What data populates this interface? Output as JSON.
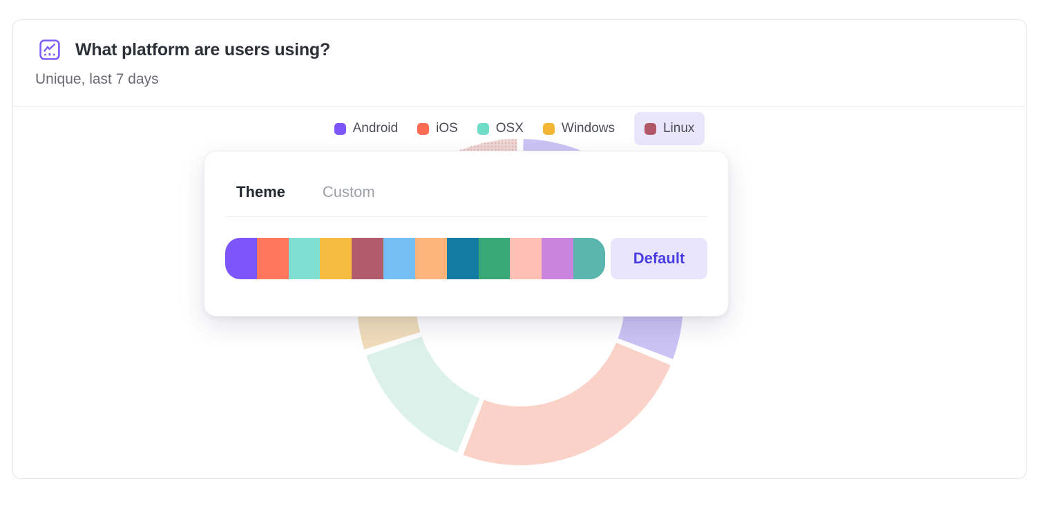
{
  "card": {
    "title": "What platform are users using?",
    "subtitle": "Unique, last 7 days",
    "icon_color": "#7d5cfa"
  },
  "legend": {
    "highlight_bg": "#e9e6fb",
    "items": [
      {
        "label": "Android",
        "color": "#7c55fb",
        "highlighted": false
      },
      {
        "label": "iOS",
        "color": "#fc6c52",
        "highlighted": false
      },
      {
        "label": "OSX",
        "color": "#70dcc8",
        "highlighted": false
      },
      {
        "label": "Windows",
        "color": "#f2b634",
        "highlighted": false
      },
      {
        "label": "Linux",
        "color": "#b25768",
        "highlighted": true
      }
    ]
  },
  "popover": {
    "tabs": [
      {
        "label": "Theme",
        "active": true
      },
      {
        "label": "Custom",
        "active": false
      }
    ],
    "palette": [
      "#7c55fb",
      "#fe765c",
      "#7fe0d1",
      "#f6bc40",
      "#b25b6b",
      "#74bef4",
      "#fdb47c",
      "#147ba3",
      "#39a877",
      "#fec0b4",
      "#c983dd",
      "#5ab5af"
    ],
    "default_button_label": "Default",
    "accent_text": "#4b3fe4",
    "accent_bg": "#e8e5fc"
  },
  "chart_data": {
    "type": "pie",
    "subtype": "donut",
    "title": "What platform are users using?",
    "categories": [
      "Android",
      "iOS",
      "OSX",
      "Windows",
      "Linux"
    ],
    "values": [
      31,
      25,
      14,
      8,
      22
    ],
    "unit": "percent (estimated from arc angles)",
    "colors": [
      "#7c55fb",
      "#fc6c52",
      "#70dcc8",
      "#f2b634",
      "#b25768"
    ],
    "faded_colors": [
      "#cbc3f3",
      "#fbd2c8",
      "#dcf1ea",
      "#f1ddba",
      "#edd5d3"
    ],
    "pattern_dot_color": "#e0a4a4",
    "legend_position": "top",
    "state": "chart dimmed behind popover; Linux slice shown with dot-pattern fill"
  }
}
